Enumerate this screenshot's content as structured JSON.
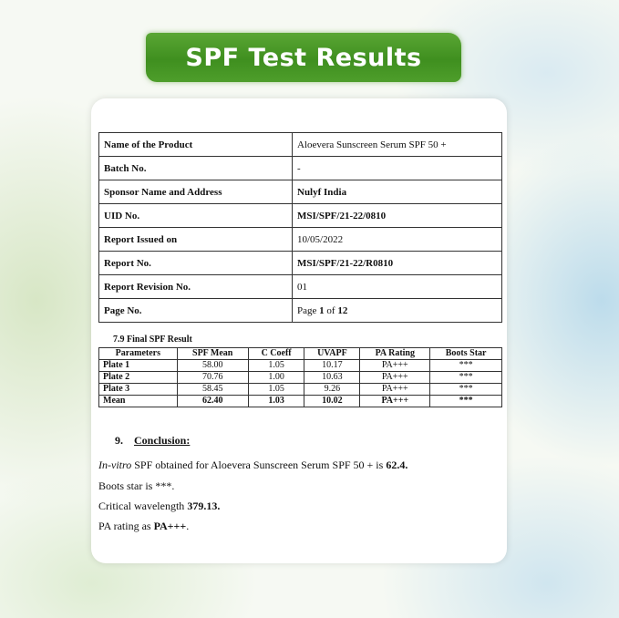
{
  "banner": {
    "title": "SPF Test Results"
  },
  "info": [
    {
      "label": "Name of the Product",
      "value": "Aloevera Sunscreen Serum SPF 50 +",
      "bold": false
    },
    {
      "label": "Batch No.",
      "value": "-",
      "bold": false
    },
    {
      "label": "Sponsor Name and Address",
      "value": "Nulyf India",
      "bold": true
    },
    {
      "label": "UID No.",
      "value": "MSI/SPF/21-22/0810",
      "bold": true
    },
    {
      "label": "Report Issued on",
      "value": "10/05/2022",
      "bold": false
    },
    {
      "label": "Report No.",
      "value": "MSI/SPF/21-22/R0810",
      "bold": true
    },
    {
      "label": "Report Revision No.",
      "value": "01",
      "bold": false
    }
  ],
  "page": {
    "label": "Page No.",
    "prefix": "Page ",
    "current": "1",
    "mid": " of ",
    "total": "12"
  },
  "result": {
    "title": "7.9 Final SPF Result",
    "headers": [
      "Parameters",
      "SPF Mean",
      "C Coeff",
      "UVAPF",
      "PA Rating",
      "Boots Star"
    ],
    "rows": [
      [
        "Plate 1",
        "58.00",
        "1.05",
        "10.17",
        "PA+++",
        "***"
      ],
      [
        "Plate 2",
        "70.76",
        "1.00",
        "10.63",
        "PA+++",
        "***"
      ],
      [
        "Plate 3",
        "58.45",
        "1.05",
        "9.26",
        "PA+++",
        "***"
      ],
      [
        "Mean",
        "62.40",
        "1.03",
        "10.02",
        "PA+++",
        "***"
      ]
    ]
  },
  "conclusion": {
    "number": "9.",
    "heading": "Conclusion:",
    "line1_italic": "In-vitro",
    "line1_text": " SPF obtained for Aloevera Sunscreen Serum SPF 50 + is ",
    "line1_value": "62.4.",
    "line2": "Boots star is ***.",
    "line3_text": "Critical wavelength ",
    "line3_value": "379.13.",
    "line4_text": "PA rating as ",
    "line4_value": "PA+++",
    "line4_end": "."
  }
}
